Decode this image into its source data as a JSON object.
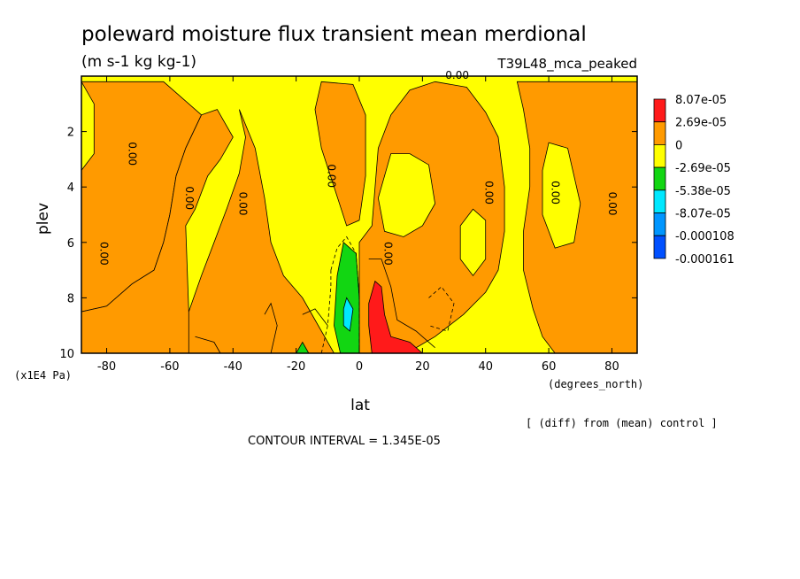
{
  "chart_data": {
    "type": "heatmap",
    "title": "poleward moisture flux transient mean merdional",
    "units": "(m s-1 kg kg-1)",
    "experiment": "T39L48_mca_peaked",
    "xlabel": "lat",
    "xunits": "(degrees_north)",
    "ylabel": "plev",
    "yunits": "(x1E4 Pa)",
    "xlim": [
      -88,
      88
    ],
    "ylim": [
      10,
      0
    ],
    "xticks": [
      -80,
      -60,
      -40,
      -20,
      0,
      20,
      40,
      60,
      80
    ],
    "yticks": [
      2,
      4,
      6,
      8,
      10
    ],
    "contour_interval_text": "CONTOUR INTERVAL = 1.345E-05",
    "diff_note": "[ (diff) from (mean) control ]",
    "legend": {
      "levels": [
        "8.07e-05",
        "2.69e-05",
        "0",
        "-2.69e-05",
        "-5.38e-05",
        "-8.07e-05",
        "-0.000108",
        "-0.000161"
      ],
      "colors": [
        "#ff1a1a",
        "#ff9a00",
        "#ffff00",
        "#12d612",
        "#00e8ff",
        "#0096ff",
        "#0050ff"
      ]
    },
    "contour_labels": [
      {
        "lat": -82,
        "plev": 6.4,
        "text": "0.00"
      },
      {
        "lat": -73,
        "plev": 2.8,
        "text": "0.00"
      },
      {
        "lat": -55,
        "plev": 4.4,
        "text": "0.00"
      },
      {
        "lat": -38,
        "plev": 4.6,
        "text": "0.00"
      },
      {
        "lat": -10,
        "plev": 3.6,
        "text": "0.00"
      },
      {
        "lat": 8,
        "plev": 6.4,
        "text": "0.00"
      },
      {
        "lat": 31,
        "plev": 0.1,
        "text": "0.00"
      },
      {
        "lat": 40,
        "plev": 4.2,
        "text": "0.00"
      },
      {
        "lat": 61,
        "plev": 4.2,
        "text": "0.00"
      },
      {
        "lat": 79,
        "plev": 4.6,
        "text": "0.00"
      }
    ],
    "regions": [
      {
        "level": "2.69e-05",
        "points": [
          [
            -88,
            0.2
          ],
          [
            -75,
            0.2
          ],
          [
            -62,
            0.2
          ],
          [
            -55,
            0.9
          ],
          [
            -50,
            1.4
          ],
          [
            -55,
            2.6
          ],
          [
            -58,
            3.6
          ],
          [
            -60,
            5
          ],
          [
            -62,
            6
          ],
          [
            -65,
            7
          ],
          [
            -72,
            7.5
          ],
          [
            -80,
            8.3
          ],
          [
            -88,
            8.5
          ]
        ]
      },
      {
        "level": "2.69e-05",
        "points": [
          [
            -45,
            1.2
          ],
          [
            -40,
            2.2
          ],
          [
            -44,
            3
          ],
          [
            -48,
            3.6
          ],
          [
            -52,
            4.8
          ],
          [
            -55,
            5.4
          ],
          [
            -54,
            8.5
          ],
          [
            -50,
            10
          ],
          [
            -88,
            10
          ],
          [
            -88,
            8.5
          ],
          [
            -80,
            8.3
          ],
          [
            -72,
            7.5
          ],
          [
            -65,
            7
          ],
          [
            -62,
            6
          ],
          [
            -60,
            5
          ],
          [
            -58,
            3.6
          ],
          [
            -55,
            2.6
          ],
          [
            -50,
            1.4
          ]
        ]
      },
      {
        "level": "2.69e-05",
        "points": [
          [
            -38,
            1.2
          ],
          [
            -33,
            2.6
          ],
          [
            -30,
            4.4
          ],
          [
            -28,
            6
          ],
          [
            -24,
            7.2
          ],
          [
            -18,
            8
          ],
          [
            -12,
            9.2
          ],
          [
            -8,
            10
          ],
          [
            -54,
            10
          ],
          [
            -54,
            8.5
          ],
          [
            -50,
            7.2
          ],
          [
            -46,
            6
          ],
          [
            -42,
            4.8
          ],
          [
            -38,
            3.5
          ],
          [
            -36,
            2.2
          ]
        ]
      },
      {
        "level": "2.69e-05",
        "points": [
          [
            -12,
            0.2
          ],
          [
            -2,
            0.3
          ],
          [
            2,
            1.4
          ],
          [
            2,
            3.6
          ],
          [
            0,
            5.2
          ],
          [
            -4,
            5.4
          ],
          [
            -8,
            4
          ],
          [
            -12,
            2.6
          ],
          [
            -14,
            1.2
          ]
        ]
      },
      {
        "level": "2.69e-05",
        "points": [
          [
            24,
            0.2
          ],
          [
            34,
            0.4
          ],
          [
            40,
            1.3
          ],
          [
            44,
            2.2
          ],
          [
            46,
            4
          ],
          [
            46,
            5.6
          ],
          [
            44,
            7
          ],
          [
            40,
            7.8
          ],
          [
            33,
            8.6
          ],
          [
            24,
            9.4
          ],
          [
            18,
            9.8
          ],
          [
            10,
            10
          ],
          [
            0,
            10
          ],
          [
            0,
            6
          ],
          [
            4,
            5.4
          ],
          [
            6,
            2.6
          ],
          [
            10,
            1.4
          ],
          [
            16,
            0.5
          ]
        ]
      },
      {
        "level": "2.69e-05",
        "points": [
          [
            50,
            0.2
          ],
          [
            88,
            0.2
          ],
          [
            88,
            10
          ],
          [
            62,
            10
          ],
          [
            58,
            9.4
          ],
          [
            55,
            8.4
          ],
          [
            52,
            7
          ],
          [
            52,
            5.6
          ],
          [
            54,
            4
          ],
          [
            54,
            2.6
          ],
          [
            52,
            1.2
          ]
        ]
      },
      {
        "level": "0",
        "points": [
          [
            60,
            2.4
          ],
          [
            66,
            2.6
          ],
          [
            70,
            4.6
          ],
          [
            68,
            6
          ],
          [
            62,
            6.2
          ],
          [
            58,
            5
          ],
          [
            58,
            3.4
          ]
        ]
      },
      {
        "level": "0",
        "points": [
          [
            10,
            2.8
          ],
          [
            16,
            2.8
          ],
          [
            22,
            3.2
          ],
          [
            24,
            4.6
          ],
          [
            20,
            5.4
          ],
          [
            14,
            5.8
          ],
          [
            8,
            5.6
          ],
          [
            6,
            4.4
          ]
        ]
      },
      {
        "level": "0",
        "points": [
          [
            36,
            4.8
          ],
          [
            40,
            5.2
          ],
          [
            40,
            6.6
          ],
          [
            36,
            7.2
          ],
          [
            32,
            6.6
          ],
          [
            32,
            5.4
          ]
        ]
      },
      {
        "level": "0",
        "points": [
          [
            -88,
            0.2
          ],
          [
            -84,
            1
          ],
          [
            -84,
            2.8
          ],
          [
            -88,
            3.4
          ]
        ]
      },
      {
        "level": "-2.69e-05",
        "points": [
          [
            -5,
            6
          ],
          [
            -1,
            6.4
          ],
          [
            0,
            8
          ],
          [
            0,
            10
          ],
          [
            -6,
            10
          ],
          [
            -8,
            9
          ],
          [
            -7,
            7.2
          ]
        ]
      },
      {
        "level": "-2.69e-05",
        "points": [
          [
            -18,
            9.6
          ],
          [
            -16,
            10
          ],
          [
            -20,
            10
          ]
        ]
      },
      {
        "level": "-5.38e-05",
        "points": [
          [
            -4,
            8
          ],
          [
            -2,
            8.4
          ],
          [
            -3,
            9.2
          ],
          [
            -5,
            9
          ],
          [
            -5,
            8.4
          ]
        ]
      },
      {
        "level": "8.07e-05",
        "points": [
          [
            5,
            7.4
          ],
          [
            7,
            7.6
          ],
          [
            8,
            8.6
          ],
          [
            10,
            9.4
          ],
          [
            16,
            9.6
          ],
          [
            20,
            10
          ],
          [
            4,
            10
          ],
          [
            3,
            9
          ],
          [
            3,
            8.2
          ]
        ]
      }
    ],
    "contour_lines": [
      {
        "dashed": true,
        "points": [
          [
            -9,
            7
          ],
          [
            -7,
            6.2
          ],
          [
            -4,
            5.8
          ],
          [
            -1,
            6.4
          ],
          [
            0,
            8
          ],
          [
            0,
            10
          ]
        ]
      },
      {
        "dashed": true,
        "points": [
          [
            -12,
            10
          ],
          [
            -10,
            9
          ],
          [
            -9,
            7.6
          ],
          [
            -9,
            7
          ]
        ]
      },
      {
        "dashed": true,
        "points": [
          [
            22,
            8
          ],
          [
            26,
            7.6
          ],
          [
            30,
            8.2
          ],
          [
            28,
            9.2
          ],
          [
            22,
            9
          ]
        ]
      },
      {
        "dashed": false,
        "points": [
          [
            3,
            6.6
          ],
          [
            7,
            6.6
          ],
          [
            10,
            7.6
          ],
          [
            12,
            8.8
          ],
          [
            18,
            9.2
          ],
          [
            24,
            9.8
          ]
        ]
      },
      {
        "dashed": false,
        "points": [
          [
            -30,
            8.6
          ],
          [
            -28,
            8.2
          ],
          [
            -26,
            9
          ],
          [
            -28,
            10
          ]
        ]
      },
      {
        "dashed": false,
        "points": [
          [
            -52,
            9.4
          ],
          [
            -46,
            9.6
          ],
          [
            -44,
            10
          ]
        ]
      },
      {
        "dashed": false,
        "points": [
          [
            -18,
            8.6
          ],
          [
            -14,
            8.4
          ],
          [
            -10,
            9
          ]
        ]
      }
    ]
  }
}
